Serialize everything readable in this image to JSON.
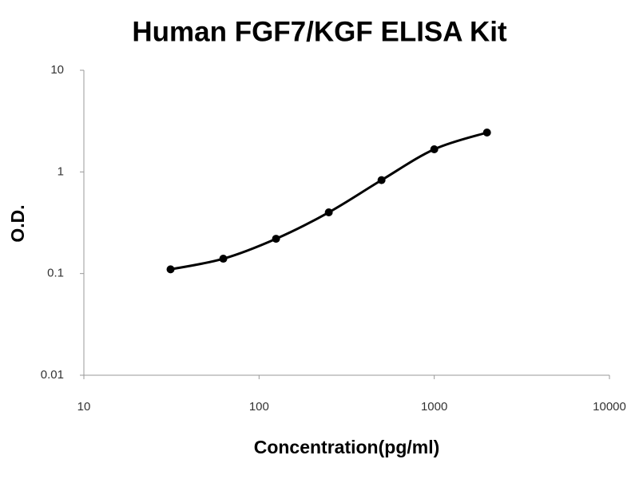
{
  "chart_data": {
    "type": "line",
    "title": "Human FGF7/KGF ELISA Kit",
    "x_label": "Concentration(pg/ml)",
    "y_label": "O.D.",
    "x": [
      31.25,
      62.5,
      125,
      250,
      500,
      1000,
      2000
    ],
    "series": [
      {
        "name": "O.D.",
        "color": "#000000",
        "values": [
          0.11,
          0.14,
          0.22,
          0.4,
          0.83,
          1.67,
          2.44
        ]
      }
    ],
    "xscale": "log",
    "yscale": "log",
    "xlim": [
      10,
      10000
    ],
    "xticks": [
      10,
      100,
      1000,
      10000
    ],
    "ylim": [
      0.01,
      10
    ],
    "yticks": [
      0.01,
      0.1,
      1,
      10
    ],
    "grid": false,
    "smooth": true,
    "markers": true
  }
}
